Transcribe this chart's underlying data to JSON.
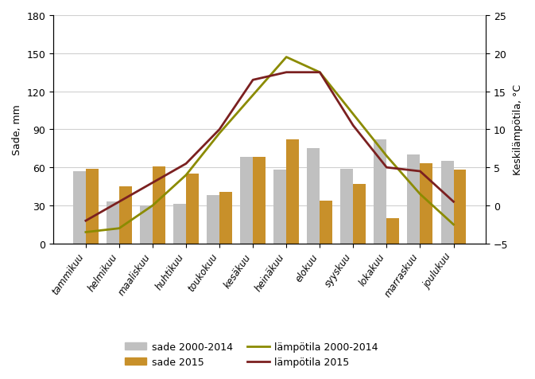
{
  "months": [
    "tammikuu",
    "helmikuu",
    "maaliskuu",
    "huhtikuu",
    "toukokuu",
    "kesäkuu",
    "heinäkuu",
    "elokuu",
    "syyskuu",
    "lokakuu",
    "marraskuu",
    "joulukuu"
  ],
  "sade_avg": [
    57,
    33,
    30,
    31,
    38,
    68,
    58,
    75,
    59,
    82,
    70,
    65
  ],
  "sade_2015": [
    59,
    45,
    61,
    55,
    41,
    68,
    82,
    34,
    47,
    20,
    63,
    58
  ],
  "temp_avg": [
    -3.5,
    -3.0,
    0.0,
    4.0,
    9.5,
    14.5,
    19.5,
    17.5,
    12.0,
    6.5,
    1.5,
    -2.5
  ],
  "temp_2015": [
    -2.0,
    0.5,
    3.0,
    5.5,
    10.0,
    16.5,
    17.5,
    17.5,
    10.5,
    5.0,
    4.5,
    0.5
  ],
  "color_sade_avg": "#c0c0c0",
  "color_sade_2015": "#c8902a",
  "color_temp_avg": "#8b8b00",
  "color_temp_2015": "#7b2020",
  "ylabel_left": "Sade, mm",
  "ylabel_right": "Keskilämpötila, °C",
  "ylim_left": [
    0,
    180
  ],
  "ylim_right": [
    -5,
    25
  ],
  "yticks_left": [
    0,
    30,
    60,
    90,
    120,
    150,
    180
  ],
  "yticks_right": [
    -5,
    0,
    5,
    10,
    15,
    20,
    25
  ],
  "legend_labels": [
    "sade 2000-2014",
    "sade 2015",
    "lämpötila 2000-2014",
    "lämpötila 2015"
  ],
  "figsize": [
    6.73,
    4.77
  ],
  "dpi": 100
}
